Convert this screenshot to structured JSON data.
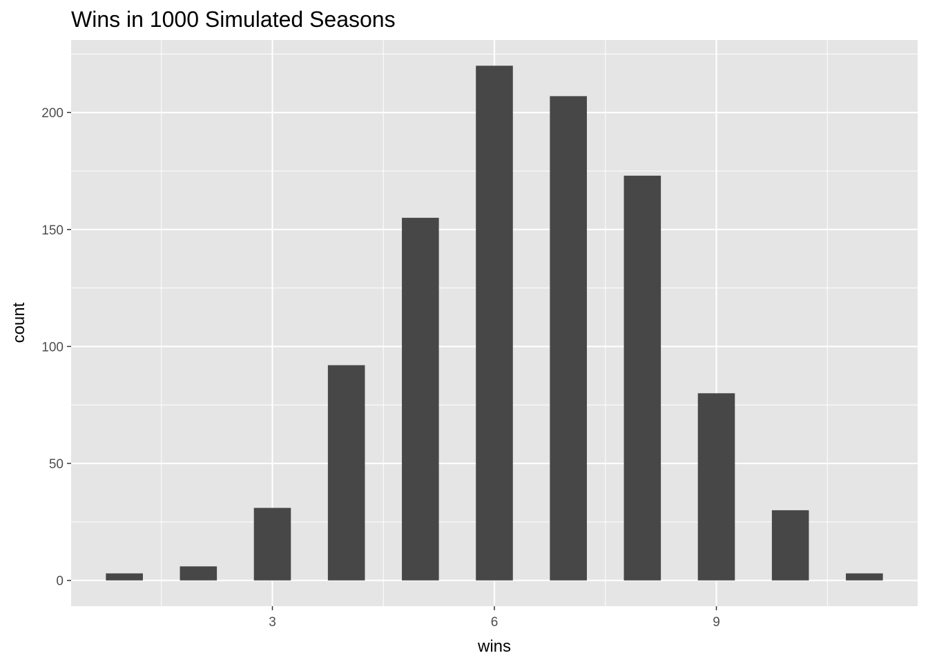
{
  "chart_data": {
    "type": "bar",
    "title": "Wins in 1000 Simulated Seasons",
    "xlabel": "wins",
    "ylabel": "count",
    "x": [
      1,
      2,
      3,
      4,
      5,
      6,
      7,
      8,
      9,
      10,
      11
    ],
    "values": [
      3,
      6,
      31,
      92,
      155,
      220,
      207,
      173,
      80,
      30,
      3
    ],
    "xlim": [
      0.28,
      11.72
    ],
    "ylim": [
      -11,
      231
    ],
    "x_ticks": [
      3,
      6,
      9
    ],
    "x_tick_labels": [
      "3",
      "6",
      "9"
    ],
    "y_ticks": [
      0,
      50,
      100,
      150,
      200
    ],
    "y_tick_labels": [
      "0",
      "50",
      "100",
      "150",
      "200"
    ],
    "grid": true,
    "legend": "none",
    "colors": {
      "panel_background": "#e5e5e5",
      "grid_line": "#ffffff",
      "bar_fill": "#474747",
      "tick_text": "#4d4d4d"
    }
  }
}
